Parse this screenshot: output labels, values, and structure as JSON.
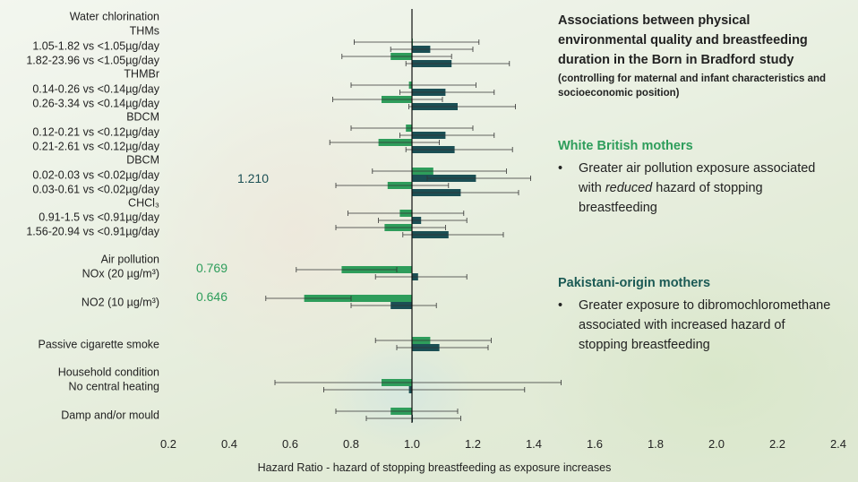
{
  "panel": {
    "title": "Associations between physical environmental quality and breastfeeding duration in the Born in Bradford study",
    "subtitle": "(controlling for maternal and infant characteristics and socioeconomic position)",
    "white_british": {
      "heading": "White British mothers",
      "bullet_pre": "Greater air pollution exposure associated with ",
      "bullet_em": "reduced",
      "bullet_post": " hazard of stopping breastfeeding"
    },
    "pakistani": {
      "heading": "Pakistani-origin mothers",
      "bullet": "Greater exposure to dibromochloromethane associated with increased hazard of stopping breastfeeding"
    },
    "bullet_char": "•"
  },
  "chart_data": {
    "type": "forest",
    "xlabel": "Hazard Ratio - hazard of stopping breastfeeding as exposure increases",
    "xlim": [
      0.2,
      2.4
    ],
    "xticks": [
      "0.2",
      "0.4",
      "0.6",
      "0.8",
      "1.0",
      "1.2",
      "1.4",
      "1.6",
      "1.8",
      "2.0",
      "2.2",
      "2.4"
    ],
    "reference_line": 1.0,
    "colors": {
      "white_british": "#2e9d5b",
      "pakistani": "#1b4f54"
    },
    "group_labels": [
      "Water chlorination",
      "THMs",
      "THMBr",
      "BDCM",
      "DBCM",
      "CHCl₃",
      "Air pollution",
      "Passive cigarette smoke",
      "Household condition"
    ],
    "rows": [
      {
        "label": "1.05-1.82 vs <1.05µg/day",
        "wb": {
          "hr": 1.0,
          "lo": 0.81,
          "hi": 1.22
        },
        "pk": {
          "hr": 1.06,
          "lo": 0.93,
          "hi": 1.2
        }
      },
      {
        "label": "1.82-23.96 vs <1.05µg/day",
        "wb": {
          "hr": 0.93,
          "lo": 0.77,
          "hi": 1.13
        },
        "pk": {
          "hr": 1.13,
          "lo": 0.98,
          "hi": 1.32
        }
      },
      {
        "label": "0.14-0.26 vs <0.14µg/day",
        "wb": {
          "hr": 0.99,
          "lo": 0.8,
          "hi": 1.21
        },
        "pk": {
          "hr": 1.11,
          "lo": 0.96,
          "hi": 1.27
        }
      },
      {
        "label": "0.26-3.34 vs <0.14µg/day",
        "wb": {
          "hr": 0.9,
          "lo": 0.74,
          "hi": 1.1
        },
        "pk": {
          "hr": 1.15,
          "lo": 0.99,
          "hi": 1.34
        }
      },
      {
        "label": "0.12-0.21 vs <0.12µg/day",
        "wb": {
          "hr": 0.98,
          "lo": 0.8,
          "hi": 1.2
        },
        "pk": {
          "hr": 1.11,
          "lo": 0.96,
          "hi": 1.27
        }
      },
      {
        "label": "0.21-2.61 vs <0.12µg/day",
        "wb": {
          "hr": 0.89,
          "lo": 0.73,
          "hi": 1.09
        },
        "pk": {
          "hr": 1.14,
          "lo": 0.98,
          "hi": 1.33
        }
      },
      {
        "label": "0.02-0.03 vs <0.02µg/day",
        "wb": {
          "hr": 1.07,
          "lo": 0.87,
          "hi": 1.31
        },
        "pk": {
          "hr": 1.21,
          "lo": 1.05,
          "hi": 1.39
        },
        "pk_annotation": "1.210"
      },
      {
        "label": "0.03-0.61 vs <0.02µg/day",
        "wb": {
          "hr": 0.92,
          "lo": 0.75,
          "hi": 1.12
        },
        "pk": {
          "hr": 1.16,
          "lo": 1.0,
          "hi": 1.35
        }
      },
      {
        "label": "0.91-1.5 vs <0.91µg/day",
        "wb": {
          "hr": 0.96,
          "lo": 0.79,
          "hi": 1.17
        },
        "pk": {
          "hr": 1.03,
          "lo": 0.89,
          "hi": 1.18
        }
      },
      {
        "label": "1.56-20.94 vs <0.91µg/day",
        "wb": {
          "hr": 0.91,
          "lo": 0.75,
          "hi": 1.11
        },
        "pk": {
          "hr": 1.12,
          "lo": 0.97,
          "hi": 1.3
        }
      },
      {
        "label": "NOx (20 µg/m³)",
        "wb": {
          "hr": 0.769,
          "lo": 0.62,
          "hi": 0.95
        },
        "pk": {
          "hr": 1.02,
          "lo": 0.88,
          "hi": 1.18
        },
        "wb_annotation": "0.769"
      },
      {
        "label": "NO2 (10 µg/m³)",
        "wb": {
          "hr": 0.646,
          "lo": 0.52,
          "hi": 0.8
        },
        "pk": {
          "hr": 0.93,
          "lo": 0.8,
          "hi": 1.08
        },
        "wb_annotation": "0.646"
      },
      {
        "label": "Passive cigarette smoke",
        "wb": {
          "hr": 1.06,
          "lo": 0.88,
          "hi": 1.26
        },
        "pk": {
          "hr": 1.09,
          "lo": 0.95,
          "hi": 1.25
        }
      },
      {
        "label": "No central heating",
        "wb": {
          "hr": 0.9,
          "lo": 0.55,
          "hi": 1.49
        },
        "pk": {
          "hr": 0.99,
          "lo": 0.71,
          "hi": 1.37
        }
      },
      {
        "label": "Damp and/or mould",
        "wb": {
          "hr": 0.93,
          "lo": 0.75,
          "hi": 1.15
        },
        "pk": {
          "hr": 1.0,
          "lo": 0.85,
          "hi": 1.16
        }
      }
    ]
  }
}
